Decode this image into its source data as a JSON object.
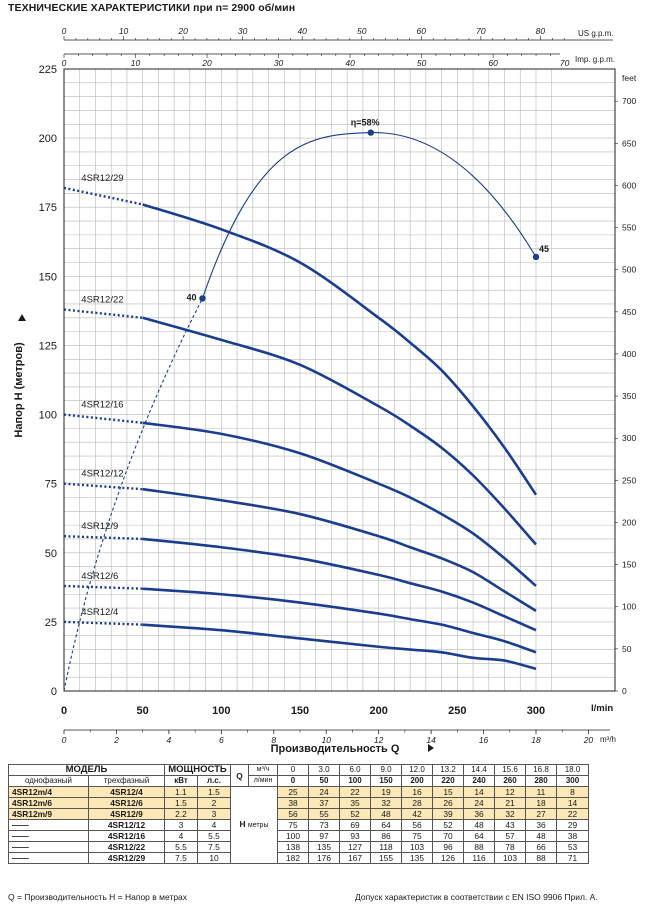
{
  "title": "ТЕХНИЧЕСКИЕ ХАРАКТЕРИСТИКИ при n= 2900 об/мин",
  "chart_data": {
    "type": "line",
    "xlabel": "Производительность Q",
    "ylabel": "Напор H  (метров)",
    "x_unit": "l/min",
    "y_right_unit": "feet",
    "xlim": [
      0,
      300
    ],
    "ylim": [
      0,
      225
    ],
    "grid": true,
    "x_ticks": [
      0,
      50,
      100,
      150,
      200,
      250,
      300
    ],
    "y_ticks": [
      0,
      25,
      50,
      75,
      100,
      125,
      150,
      175,
      200,
      225
    ],
    "axis_m3h": {
      "unit": "m³/h",
      "ticks": [
        "0",
        "2",
        "4",
        "6",
        "8",
        "10",
        "12",
        "14",
        "16",
        "18",
        "20"
      ]
    },
    "axis_us_gpm": {
      "unit": "US g.p.m.",
      "ticks": [
        "0",
        "10",
        "20",
        "30",
        "40",
        "50",
        "60",
        "70",
        "80"
      ]
    },
    "axis_imp_gpm": {
      "unit": "Imp. g.p.m.",
      "ticks": [
        "0",
        "10",
        "20",
        "30",
        "40",
        "50",
        "60",
        "70"
      ]
    },
    "axis_feet": {
      "unit": "feet",
      "ticks": [
        "0",
        "50",
        "100",
        "150",
        "200",
        "250",
        "300",
        "350",
        "400",
        "450",
        "500",
        "550",
        "600",
        "650",
        "700"
      ]
    },
    "series": [
      {
        "name": "4SR12/29",
        "x": [
          0,
          50,
          100,
          150,
          200,
          220,
          240,
          260,
          280,
          300
        ],
        "values": [
          182,
          176,
          167,
          155,
          135,
          126,
          116,
          103,
          88,
          71
        ]
      },
      {
        "name": "4SR12/22",
        "x": [
          0,
          50,
          100,
          150,
          200,
          220,
          240,
          260,
          280,
          300
        ],
        "values": [
          138,
          135,
          127,
          118,
          103,
          96,
          88,
          78,
          66,
          53
        ]
      },
      {
        "name": "4SR12/16",
        "x": [
          0,
          50,
          100,
          150,
          200,
          220,
          240,
          260,
          280,
          300
        ],
        "values": [
          100,
          97,
          93,
          86,
          75,
          70,
          64,
          57,
          48,
          38
        ]
      },
      {
        "name": "4SR12/12",
        "x": [
          0,
          50,
          100,
          150,
          200,
          220,
          240,
          260,
          280,
          300
        ],
        "values": [
          75,
          73,
          69,
          64,
          56,
          52,
          48,
          43,
          36,
          29
        ]
      },
      {
        "name": "4SR12/9",
        "x": [
          0,
          50,
          100,
          150,
          200,
          220,
          240,
          260,
          280,
          300
        ],
        "values": [
          56,
          55,
          52,
          48,
          42,
          39,
          36,
          32,
          27,
          22
        ]
      },
      {
        "name": "4SR12/6",
        "x": [
          0,
          50,
          100,
          150,
          200,
          220,
          240,
          260,
          280,
          300
        ],
        "values": [
          38,
          37,
          35,
          32,
          28,
          26,
          24,
          21,
          18,
          14
        ]
      },
      {
        "name": "4SR12/4",
        "x": [
          0,
          50,
          100,
          150,
          200,
          220,
          240,
          260,
          280,
          300
        ],
        "values": [
          25,
          24,
          22,
          19,
          16,
          15,
          14,
          12,
          11,
          8
        ]
      }
    ],
    "efficiency": {
      "label_peak": "η=58%",
      "points": [
        {
          "label": "40",
          "x": 88,
          "y": 142
        },
        {
          "label": "",
          "x": 195,
          "y": 202
        },
        {
          "label": "45",
          "x": 300,
          "y": 157
        }
      ]
    }
  },
  "table": {
    "head_model": "МОДЕЛЬ",
    "head_power": "МОЩНОСТЬ",
    "head_single": "однофазный",
    "head_three": "трехфазный",
    "head_kw": "кВт",
    "head_hp": "л.с.",
    "q_label": "Q",
    "q_unit1": "м³/ч",
    "q_unit2": "л/мин",
    "h_label": "H",
    "h_unit": "метры",
    "q_m3h": [
      "0",
      "3.0",
      "6.0",
      "9.0",
      "12.0",
      "13.2",
      "14.4",
      "15.6",
      "16.8",
      "18.0"
    ],
    "q_lmin": [
      "0",
      "50",
      "100",
      "150",
      "200",
      "220",
      "240",
      "260",
      "280",
      "300"
    ],
    "rows": [
      {
        "single": "4SR12m/4",
        "three": "4SR12/4",
        "kw": "1.1",
        "hp": "1.5",
        "h": [
          "25",
          "24",
          "22",
          "19",
          "16",
          "15",
          "14",
          "12",
          "11",
          "8"
        ]
      },
      {
        "single": "4SR12m/6",
        "three": "4SR12/6",
        "kw": "1.5",
        "hp": "2",
        "h": [
          "38",
          "37",
          "35",
          "32",
          "28",
          "26",
          "24",
          "21",
          "18",
          "14"
        ]
      },
      {
        "single": "4SR12m/9",
        "three": "4SR12/9",
        "kw": "2.2",
        "hp": "3",
        "h": [
          "56",
          "55",
          "52",
          "48",
          "42",
          "39",
          "36",
          "32",
          "27",
          "22"
        ]
      },
      {
        "single": "——",
        "three": "4SR12/12",
        "kw": "3",
        "hp": "4",
        "h": [
          "75",
          "73",
          "69",
          "64",
          "56",
          "52",
          "48",
          "43",
          "36",
          "29"
        ]
      },
      {
        "single": "——",
        "three": "4SR12/16",
        "kw": "4",
        "hp": "5.5",
        "h": [
          "100",
          "97",
          "93",
          "86",
          "75",
          "70",
          "64",
          "57",
          "48",
          "38"
        ]
      },
      {
        "single": "——",
        "three": "4SR12/22",
        "kw": "5.5",
        "hp": "7.5",
        "h": [
          "138",
          "135",
          "127",
          "118",
          "103",
          "96",
          "88",
          "78",
          "66",
          "53"
        ]
      },
      {
        "single": "——",
        "three": "4SR12/29",
        "kw": "7.5",
        "hp": "10",
        "h": [
          "182",
          "176",
          "167",
          "155",
          "135",
          "126",
          "116",
          "103",
          "88",
          "71"
        ]
      }
    ]
  },
  "footer": {
    "left": "Q = Производительность    H = Напор в метрах",
    "right": "Допуск характеристик в соответствии с EN ISO 9906 Прил.  A."
  }
}
